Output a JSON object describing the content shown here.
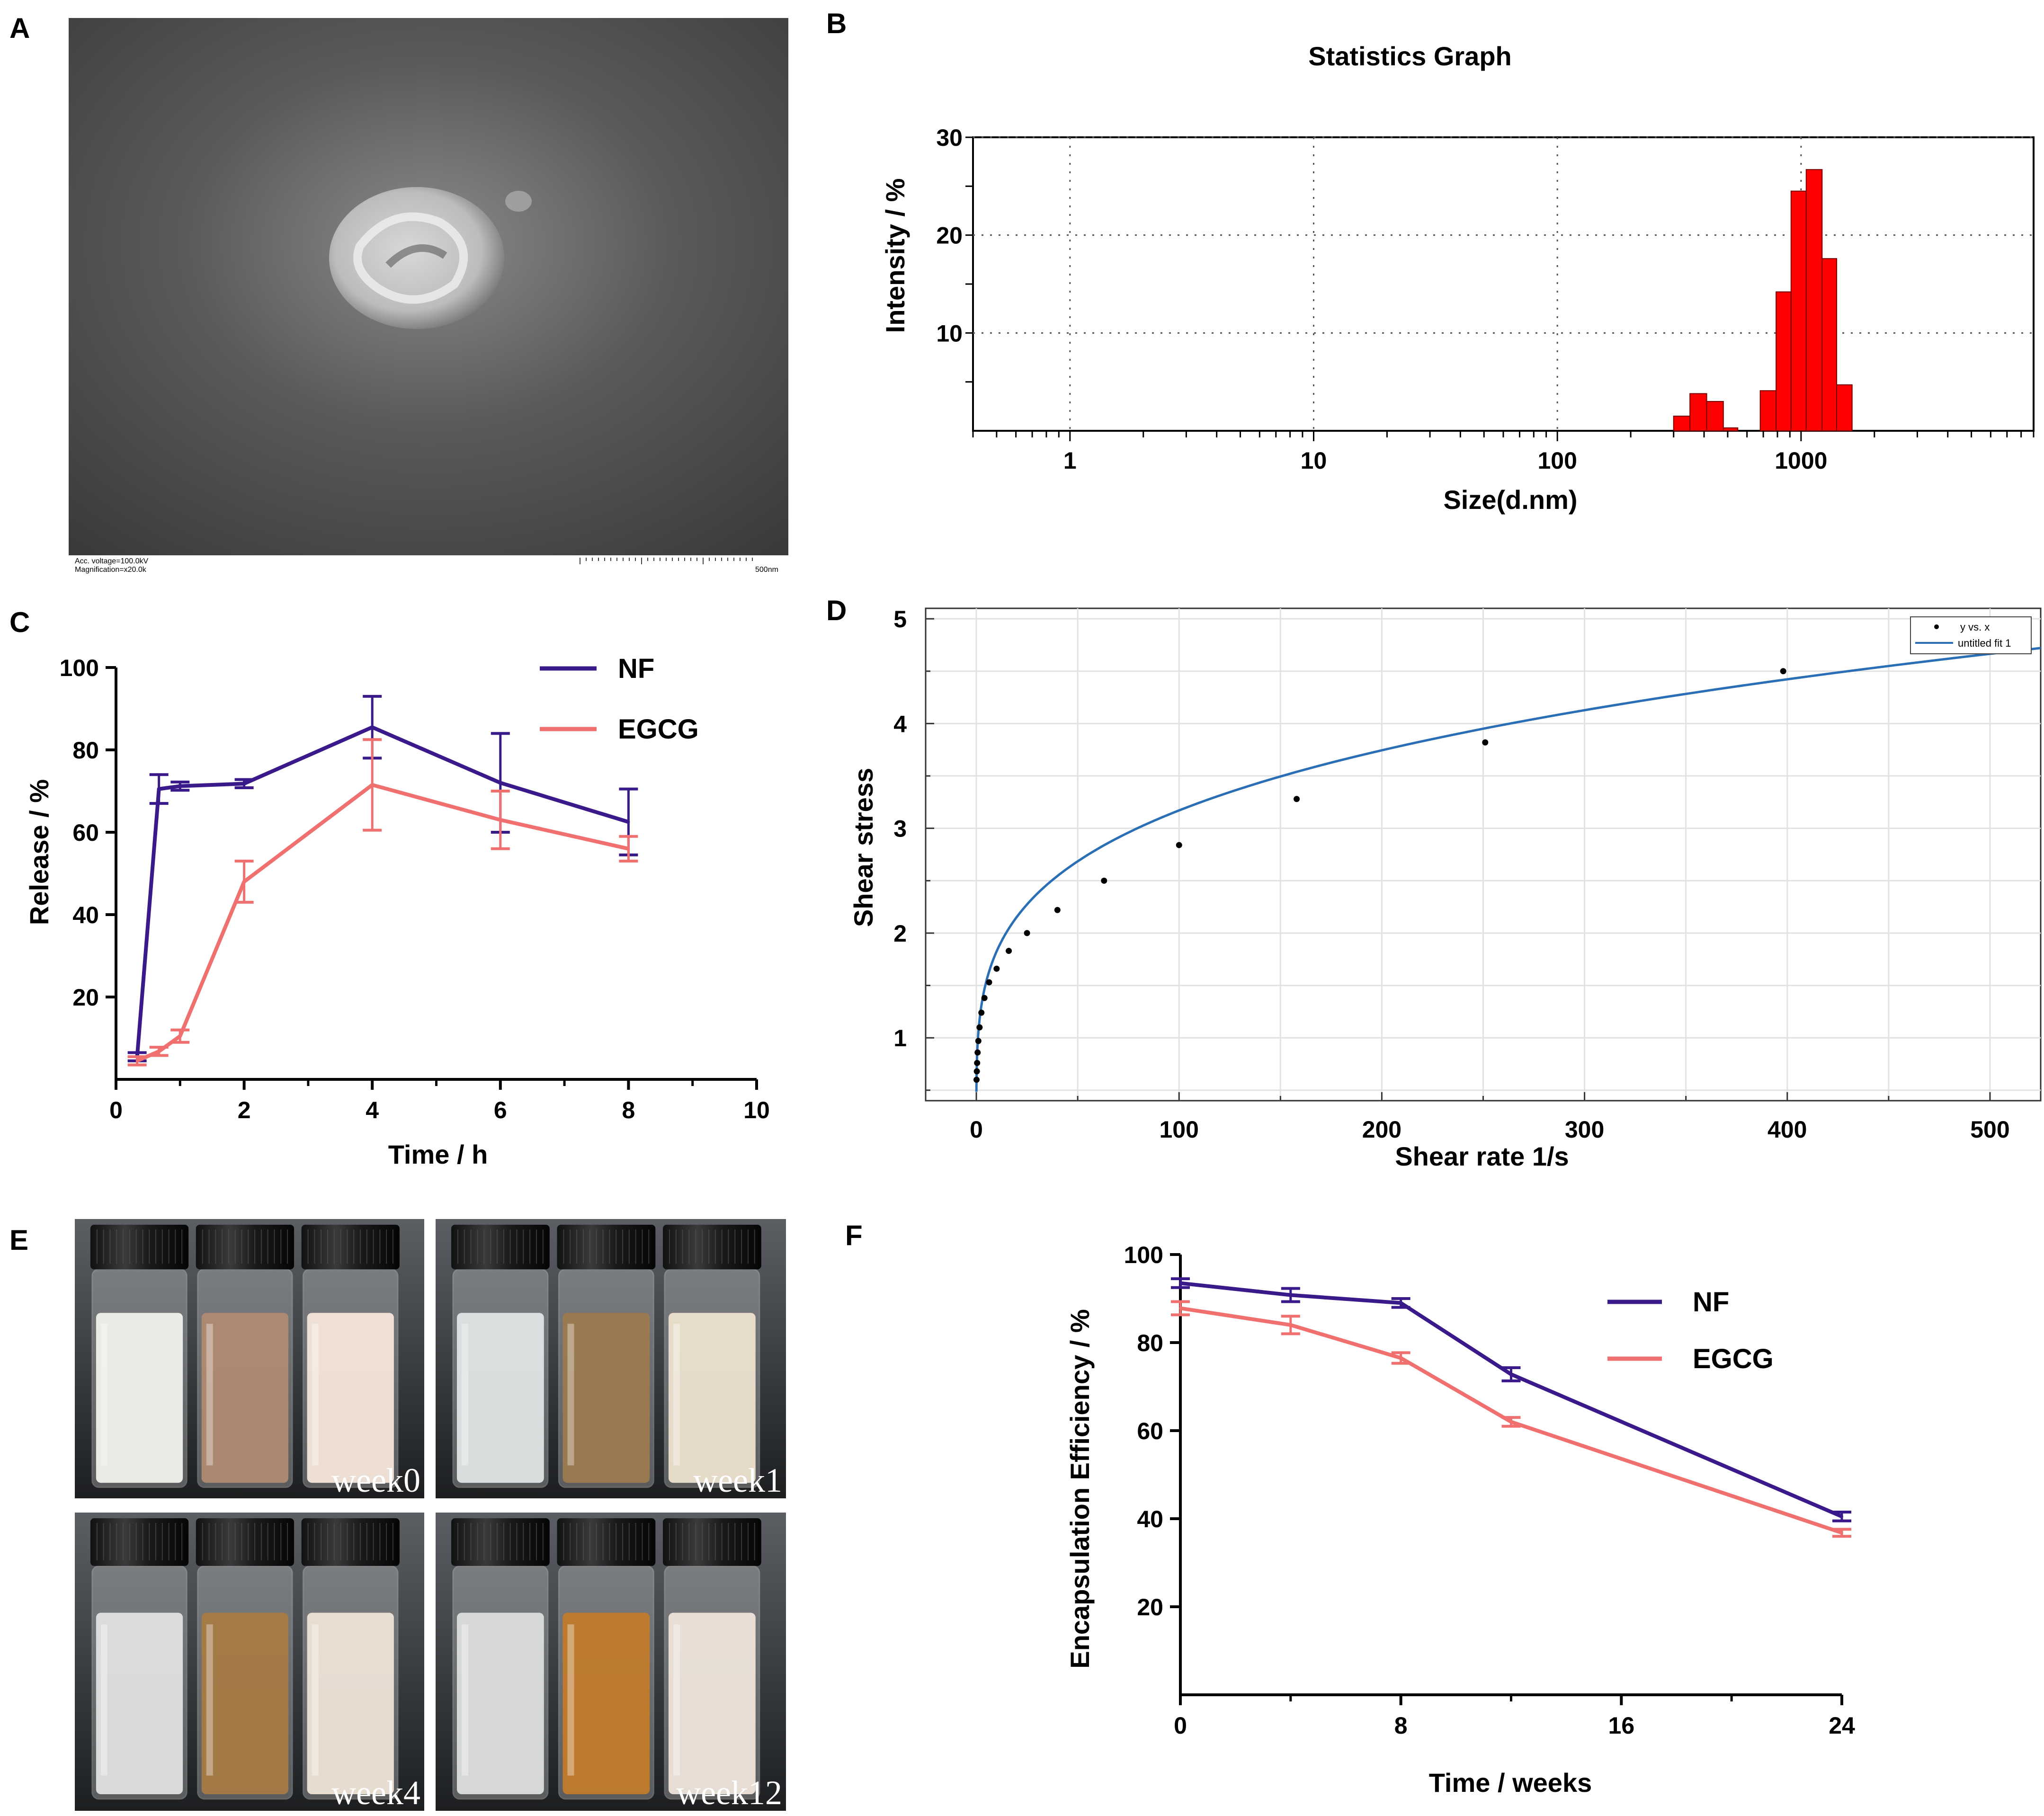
{
  "panel_labels": {
    "a": "A",
    "b": "B",
    "c": "C",
    "d": "D",
    "e": "E",
    "f": "F"
  },
  "tem_image": {
    "caption_voltage": "Acc. voltage=100.0kV",
    "caption_magnification": "Magnification=x20.0k",
    "scale_label": "500nm"
  },
  "vials_photo": {
    "weeks": [
      "week0",
      "week1",
      "week4",
      "week12"
    ]
  },
  "colors": {
    "nf": "#3a1a8a",
    "egcg": "#f07070",
    "bar": "#ff0000",
    "fit": "#2a6fb5"
  },
  "chart_data": [
    {
      "id": "B",
      "type": "bar",
      "title": "Statistics Graph",
      "xlabel": "Size(d.nm)",
      "ylabel": "Intensity / %",
      "xscale": "log",
      "xlim": [
        0.4,
        9000
      ],
      "ylim": [
        0,
        30
      ],
      "yticks": [
        "10",
        "20",
        "30"
      ],
      "xticks": [
        "1",
        "10",
        "100",
        "1000"
      ],
      "grid": true,
      "bins": [
        {
          "lo": 300,
          "hi": 350,
          "value": 1.5
        },
        {
          "lo": 350,
          "hi": 410,
          "value": 3.8
        },
        {
          "lo": 410,
          "hi": 480,
          "value": 3.0
        },
        {
          "lo": 480,
          "hi": 550,
          "value": 0.3
        },
        {
          "lo": 680,
          "hi": 790,
          "value": 4.1
        },
        {
          "lo": 790,
          "hi": 910,
          "value": 14.2
        },
        {
          "lo": 910,
          "hi": 1050,
          "value": 24.5
        },
        {
          "lo": 1050,
          "hi": 1220,
          "value": 26.7
        },
        {
          "lo": 1220,
          "hi": 1400,
          "value": 17.6
        },
        {
          "lo": 1400,
          "hi": 1620,
          "value": 4.7
        }
      ]
    },
    {
      "id": "C",
      "type": "line",
      "xlabel": "Time / h",
      "ylabel": "Release / %",
      "xlim": [
        0,
        10
      ],
      "ylim": [
        0,
        100
      ],
      "xticks": [
        "0",
        "2",
        "4",
        "6",
        "8",
        "10"
      ],
      "yticks": [
        "20",
        "40",
        "60",
        "80",
        "100"
      ],
      "series": [
        {
          "name": "NF",
          "x": [
            0.33,
            0.67,
            1,
            2,
            4,
            6,
            8
          ],
          "y": [
            5.5,
            70.5,
            71.2,
            71.8,
            85.5,
            72.0,
            62.5
          ],
          "err": [
            1.0,
            3.5,
            1.0,
            1.0,
            7.5,
            12.0,
            8.0
          ]
        },
        {
          "name": "EGCG",
          "x": [
            0.33,
            0.67,
            1,
            2,
            4,
            6,
            8
          ],
          "y": [
            4.5,
            6.8,
            10.5,
            48.0,
            71.5,
            63.0,
            56.0
          ],
          "err": [
            1.0,
            1.0,
            1.5,
            5.0,
            11.0,
            7.0,
            3.0
          ]
        }
      ]
    },
    {
      "id": "D",
      "type": "scatter",
      "xlabel": "Shear rate 1/s",
      "ylabel": "Shear stress",
      "xlim": [
        -25,
        525
      ],
      "ylim": [
        0.4,
        5.1
      ],
      "xticks": [
        "0",
        "100",
        "200",
        "300",
        "400",
        "500"
      ],
      "yticks": [
        "1",
        "2",
        "3",
        "4",
        "5"
      ],
      "grid": true,
      "legend": [
        "y vs. x",
        "untitled fit 1"
      ],
      "points_x": [
        0.1,
        0.25,
        0.4,
        0.63,
        1,
        1.6,
        2.5,
        4,
        6.3,
        10,
        16,
        25,
        40,
        63,
        100,
        158,
        251,
        398
      ],
      "points_y": [
        0.6,
        0.68,
        0.76,
        0.86,
        0.97,
        1.1,
        1.24,
        1.38,
        1.53,
        1.66,
        1.83,
        2.0,
        2.22,
        2.5,
        2.84,
        3.28,
        3.82,
        4.5
      ],
      "fit": {
        "model": "power",
        "k": 1.05,
        "n": 0.24
      }
    },
    {
      "id": "F",
      "type": "line",
      "xlabel": "Time / weeks",
      "ylabel": "Encapsulation Efficiency / %",
      "xlim": [
        0,
        24
      ],
      "ylim": [
        0,
        100
      ],
      "xticks": [
        "0",
        "8",
        "16",
        "24"
      ],
      "yticks": [
        "20",
        "40",
        "60",
        "80",
        "100"
      ],
      "series": [
        {
          "name": "NF",
          "x": [
            0,
            4,
            8,
            12,
            24
          ],
          "y": [
            93.5,
            90.8,
            89.0,
            72.8,
            40.5
          ],
          "err": [
            1.0,
            1.5,
            1.0,
            1.5,
            1.0
          ]
        },
        {
          "name": "EGCG",
          "x": [
            0,
            4,
            8,
            12,
            24
          ],
          "y": [
            87.8,
            84.0,
            76.5,
            62.0,
            36.8
          ],
          "err": [
            1.5,
            2.0,
            1.2,
            1.0,
            0.8
          ]
        }
      ]
    }
  ]
}
